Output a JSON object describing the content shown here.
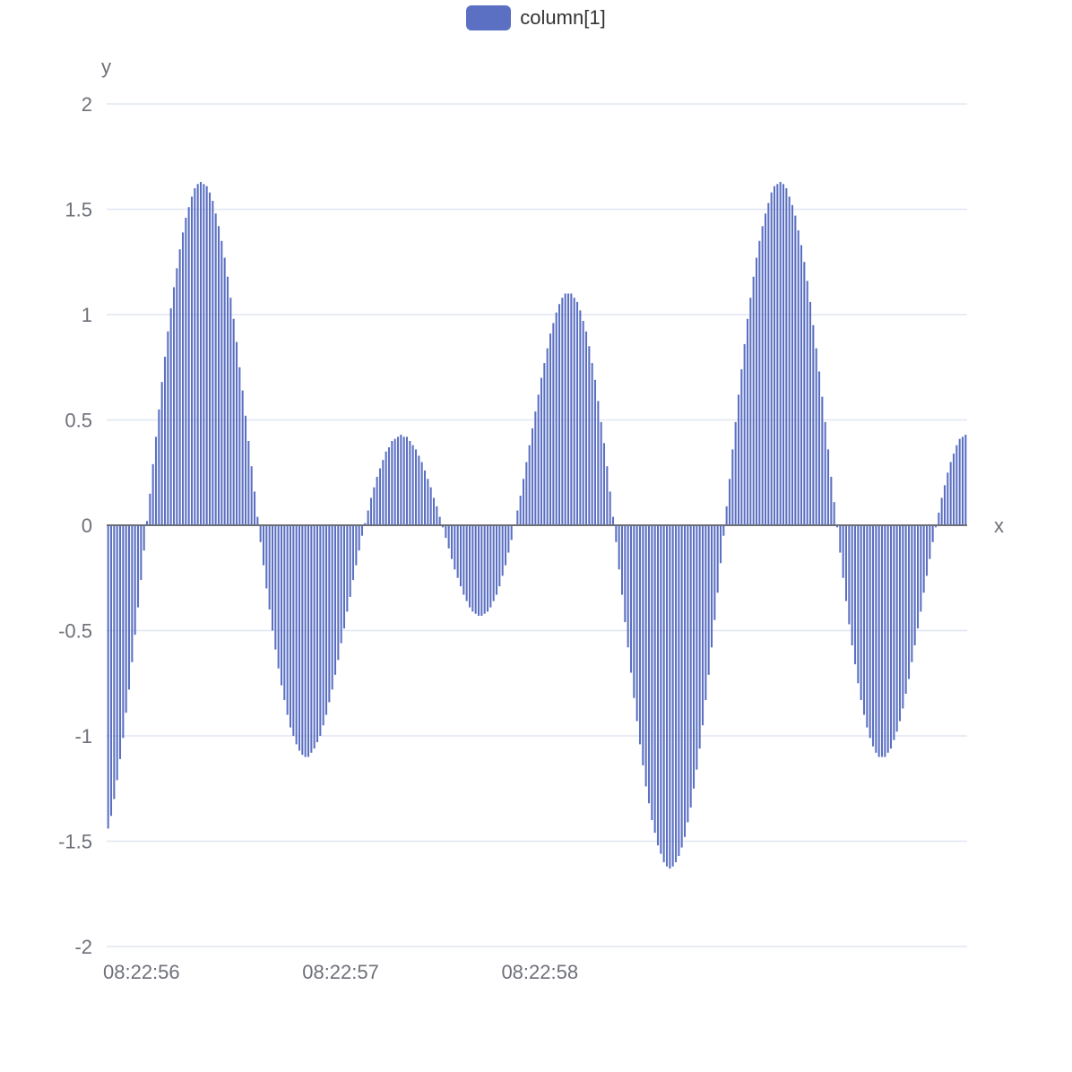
{
  "legend": {
    "label": "column[1]",
    "color": "#5b70c3"
  },
  "chart_data": {
    "type": "bar",
    "series": [
      {
        "name": "column[1]",
        "color": "#5b70c3"
      }
    ],
    "xlabel": "x",
    "ylabel": "y",
    "ylim": [
      -2,
      2
    ],
    "yticks": [
      "2",
      "1.5",
      "1",
      "0.5",
      "0",
      "-0.5",
      "-1",
      "-1.5",
      "-2"
    ],
    "xticks": [
      "08:22:56",
      "08:22:57",
      "08:22:58"
    ],
    "x_range": [
      "08:22:56.000",
      "08:22:58.995"
    ],
    "x_step_ms": 15,
    "values": [
      -1.44,
      -1.38,
      -1.3,
      -1.21,
      -1.11,
      -1.01,
      -0.89,
      -0.78,
      -0.65,
      -0.52,
      -0.39,
      -0.26,
      -0.12,
      0.02,
      0.15,
      0.29,
      0.42,
      0.55,
      0.68,
      0.8,
      0.92,
      1.03,
      1.13,
      1.22,
      1.31,
      1.39,
      1.46,
      1.51,
      1.56,
      1.6,
      1.62,
      1.63,
      1.62,
      1.61,
      1.58,
      1.54,
      1.48,
      1.42,
      1.35,
      1.27,
      1.18,
      1.08,
      0.98,
      0.87,
      0.75,
      0.64,
      0.52,
      0.4,
      0.28,
      0.16,
      0.04,
      -0.08,
      -0.19,
      -0.3,
      -0.4,
      -0.5,
      -0.59,
      -0.68,
      -0.76,
      -0.83,
      -0.9,
      -0.96,
      -1.0,
      -1.04,
      -1.07,
      -1.09,
      -1.1,
      -1.1,
      -1.08,
      -1.06,
      -1.03,
      -1.0,
      -0.95,
      -0.9,
      -0.84,
      -0.78,
      -0.71,
      -0.64,
      -0.56,
      -0.49,
      -0.41,
      -0.34,
      -0.26,
      -0.19,
      -0.12,
      -0.05,
      0.01,
      0.07,
      0.13,
      0.18,
      0.23,
      0.27,
      0.31,
      0.35,
      0.37,
      0.4,
      0.41,
      0.42,
      0.43,
      0.42,
      0.42,
      0.4,
      0.38,
      0.36,
      0.33,
      0.3,
      0.26,
      0.22,
      0.18,
      0.13,
      0.09,
      0.04,
      -0.01,
      -0.06,
      -0.11,
      -0.16,
      -0.21,
      -0.25,
      -0.29,
      -0.33,
      -0.36,
      -0.39,
      -0.41,
      -0.42,
      -0.43,
      -0.43,
      -0.42,
      -0.41,
      -0.39,
      -0.36,
      -0.33,
      -0.29,
      -0.24,
      -0.19,
      -0.13,
      -0.07,
      0.0,
      0.07,
      0.14,
      0.22,
      0.3,
      0.38,
      0.46,
      0.54,
      0.62,
      0.7,
      0.77,
      0.84,
      0.91,
      0.96,
      1.01,
      1.05,
      1.08,
      1.1,
      1.1,
      1.1,
      1.08,
      1.06,
      1.02,
      0.97,
      0.92,
      0.85,
      0.77,
      0.69,
      0.59,
      0.49,
      0.39,
      0.28,
      0.16,
      0.04,
      -0.08,
      -0.21,
      -0.33,
      -0.46,
      -0.58,
      -0.7,
      -0.82,
      -0.93,
      -1.04,
      -1.14,
      -1.24,
      -1.32,
      -1.4,
      -1.46,
      -1.52,
      -1.56,
      -1.6,
      -1.62,
      -1.63,
      -1.62,
      -1.6,
      -1.57,
      -1.53,
      -1.48,
      -1.41,
      -1.34,
      -1.25,
      -1.16,
      -1.06,
      -0.95,
      -0.83,
      -0.71,
      -0.58,
      -0.45,
      -0.32,
      -0.18,
      -0.05,
      0.09,
      0.22,
      0.36,
      0.49,
      0.62,
      0.74,
      0.86,
      0.98,
      1.08,
      1.18,
      1.27,
      1.35,
      1.42,
      1.48,
      1.53,
      1.58,
      1.61,
      1.62,
      1.63,
      1.62,
      1.6,
      1.56,
      1.52,
      1.47,
      1.4,
      1.33,
      1.25,
      1.16,
      1.06,
      0.95,
      0.84,
      0.73,
      0.61,
      0.49,
      0.36,
      0.23,
      0.11,
      -0.01,
      -0.13,
      -0.25,
      -0.36,
      -0.47,
      -0.57,
      -0.66,
      -0.75,
      -0.83,
      -0.9,
      -0.96,
      -1.01,
      -1.05,
      -1.08,
      -1.1,
      -1.1,
      -1.1,
      -1.08,
      -1.06,
      -1.02,
      -0.98,
      -0.93,
      -0.87,
      -0.8,
      -0.73,
      -0.65,
      -0.57,
      -0.49,
      -0.41,
      -0.32,
      -0.24,
      -0.16,
      -0.08,
      -0.01,
      0.06,
      0.13,
      0.19,
      0.25,
      0.3,
      0.34,
      0.38,
      0.41,
      0.42,
      0.43
    ]
  }
}
